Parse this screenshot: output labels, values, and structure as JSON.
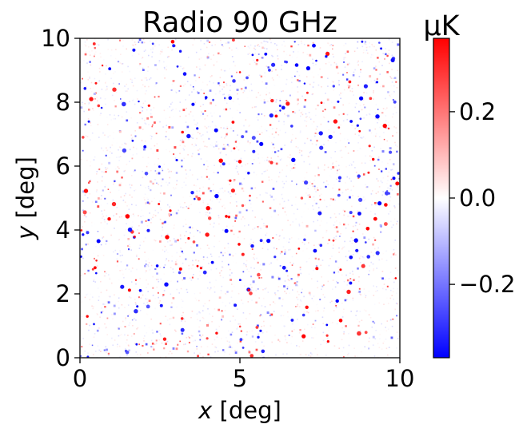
{
  "chart_data": {
    "type": "heatmap",
    "title": "Radio 90 GHz",
    "xlabel_var": "x",
    "xlabel_unit": "[deg]",
    "ylabel_var": "y",
    "ylabel_unit": "[deg]",
    "xlim": [
      0,
      10
    ],
    "ylim": [
      0,
      10
    ],
    "x_ticks": [
      0,
      5,
      10
    ],
    "x_tick_labels": [
      "0",
      "5",
      "10"
    ],
    "y_ticks": [
      0,
      2,
      4,
      6,
      8,
      10
    ],
    "y_tick_labels": [
      "0",
      "2",
      "4",
      "6",
      "8",
      "10"
    ],
    "colorbar": {
      "label": "μK",
      "range": [
        -0.37,
        0.37
      ],
      "ticks": [
        -0.2,
        0.0,
        0.2
      ],
      "tick_labels": [
        "−0.2",
        "0.0",
        "0.2"
      ],
      "colormap": "bwr",
      "color_low": "#0000ff",
      "color_mid": "#ffffff",
      "color_high": "#ff0000"
    },
    "grid": false
  }
}
